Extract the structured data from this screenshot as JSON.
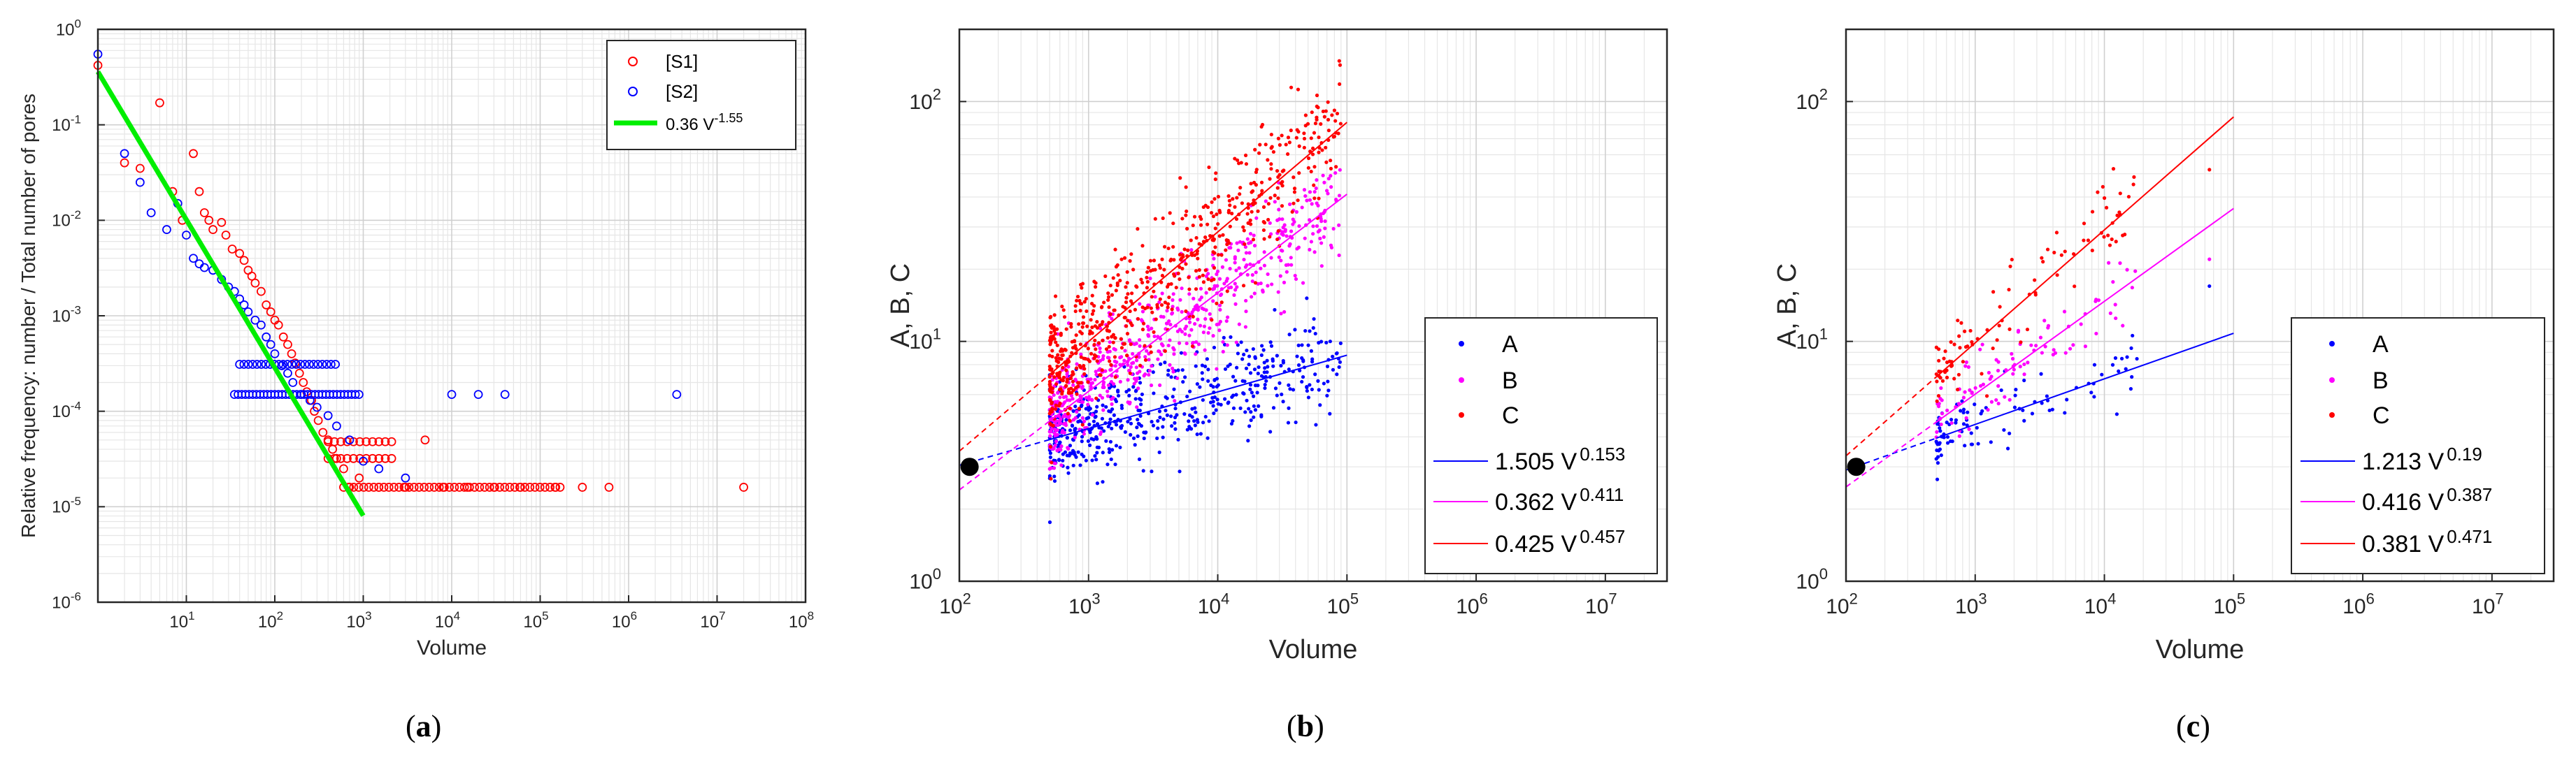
{
  "chart_data": [
    {
      "id": "a",
      "type": "scatter",
      "xscale": "log",
      "yscale": "log",
      "xlim": [
        1,
        100000000
      ],
      "ylim": [
        1e-06,
        1
      ],
      "xlabel": "Volume",
      "ylabel": "Relative frequency: number / Total number of pores",
      "xticks": [
        {
          "v": 10,
          "b": "10",
          "e": "1"
        },
        {
          "v": 100,
          "b": "10",
          "e": "2"
        },
        {
          "v": 1000,
          "b": "10",
          "e": "3"
        },
        {
          "v": 10000,
          "b": "10",
          "e": "4"
        },
        {
          "v": 100000,
          "b": "10",
          "e": "5"
        },
        {
          "v": 1000000,
          "b": "10",
          "e": "6"
        },
        {
          "v": 10000000,
          "b": "10",
          "e": "7"
        },
        {
          "v": 100000000,
          "b": "10",
          "e": "8"
        }
      ],
      "yticks": [
        {
          "v": 1e-06,
          "b": "10",
          "e": "-6"
        },
        {
          "v": 1e-05,
          "b": "10",
          "e": "-5"
        },
        {
          "v": 0.0001,
          "b": "10",
          "e": "-4"
        },
        {
          "v": 0.001,
          "b": "10",
          "e": "-3"
        },
        {
          "v": 0.01,
          "b": "10",
          "e": "-2"
        },
        {
          "v": 0.1,
          "b": "10",
          "e": "-1"
        },
        {
          "v": 1,
          "b": "10",
          "e": "0"
        }
      ],
      "series": [
        {
          "name": "[S1]",
          "color": "#ff0000",
          "marker": "circle-open",
          "points": [
            [
              1,
              0.42
            ],
            [
              2,
              0.04
            ],
            [
              3,
              0.035
            ],
            [
              5,
              0.17
            ],
            [
              7,
              0.02
            ],
            [
              9,
              0.01
            ],
            [
              12,
              0.05
            ],
            [
              14,
              0.02
            ],
            [
              16,
              0.012
            ],
            [
              18,
              0.01
            ],
            [
              20,
              0.008
            ],
            [
              25,
              0.0095
            ],
            [
              28,
              0.007
            ],
            [
              33,
              0.005
            ],
            [
              40,
              0.0045
            ],
            [
              45,
              0.0038
            ],
            [
              50,
              0.003
            ],
            [
              55,
              0.0026
            ],
            [
              60,
              0.0022
            ],
            [
              70,
              0.0018
            ],
            [
              80,
              0.0013
            ],
            [
              90,
              0.0011
            ],
            [
              100,
              0.0009
            ],
            [
              110,
              0.0008
            ],
            [
              125,
              0.0006
            ],
            [
              140,
              0.0005
            ],
            [
              155,
              0.0004
            ],
            [
              170,
              0.00032
            ],
            [
              190,
              0.00025
            ],
            [
              210,
              0.0002
            ],
            [
              230,
              0.00016
            ],
            [
              260,
              0.00013
            ],
            [
              280,
              0.0001
            ],
            [
              310,
              8e-05
            ],
            [
              350,
              6e-05
            ],
            [
              400,
              5e-05
            ],
            [
              450,
              4e-05
            ],
            [
              500,
              3.2e-05
            ],
            [
              600,
              2.5e-05
            ],
            [
              700,
              1.6e-05
            ],
            [
              900,
              2e-05
            ],
            [
              1500,
              1.6e-05
            ],
            [
              3000,
              1.6e-05
            ],
            [
              5000,
              5e-05
            ],
            [
              8000,
              1.6e-05
            ],
            [
              15000,
              1.6e-05
            ],
            [
              30000,
              1.6e-05
            ],
            [
              60000,
              1.6e-05
            ],
            [
              150000,
              1.6e-05
            ],
            [
              300000,
              1.6e-05
            ],
            [
              600000,
              1.6e-05
            ],
            [
              20000000,
              1.6e-05
            ]
          ]
        },
        {
          "name": "[S2]",
          "color": "#0000ff",
          "marker": "circle-open",
          "points": [
            [
              1,
              0.55
            ],
            [
              2,
              0.05
            ],
            [
              3,
              0.025
            ],
            [
              4,
              0.012
            ],
            [
              6,
              0.008
            ],
            [
              8,
              0.015
            ],
            [
              10,
              0.007
            ],
            [
              12,
              0.004
            ],
            [
              14,
              0.0035
            ],
            [
              16,
              0.0032
            ],
            [
              20,
              0.003
            ],
            [
              25,
              0.0024
            ],
            [
              30,
              0.002
            ],
            [
              35,
              0.0018
            ],
            [
              40,
              0.0015
            ],
            [
              45,
              0.0013
            ],
            [
              50,
              0.0011
            ],
            [
              60,
              0.0009
            ],
            [
              70,
              0.0008
            ],
            [
              80,
              0.0006
            ],
            [
              90,
              0.0005
            ],
            [
              100,
              0.0004
            ],
            [
              120,
              0.0003
            ],
            [
              140,
              0.00025
            ],
            [
              160,
              0.0002
            ],
            [
              200,
              0.00015
            ],
            [
              250,
              0.00013
            ],
            [
              300,
              0.00011
            ],
            [
              400,
              9e-05
            ],
            [
              500,
              7e-05
            ],
            [
              700,
              5e-05
            ],
            [
              1000,
              3e-05
            ],
            [
              1500,
              2.5e-05
            ],
            [
              3000,
              2e-05
            ],
            [
              10000,
              0.00015
            ],
            [
              20000,
              0.00015
            ],
            [
              40000,
              0.00015
            ],
            [
              3500000,
              0.00015
            ]
          ]
        }
      ],
      "fits": [
        {
          "label": "0.36 V",
          "exp": "-1.55",
          "color": "#00ee00",
          "a": 0.36,
          "b": -1.55,
          "x0": 1,
          "x1": 1000
        }
      ],
      "legend": {
        "position": "top-right",
        "entries": [
          {
            "label": "[S1]"
          },
          {
            "label": "[S2]"
          },
          {
            "label": "0.36 V",
            "exp": "-1.55"
          }
        ]
      }
    },
    {
      "id": "b",
      "type": "scatter",
      "xscale": "log",
      "yscale": "log",
      "xlim": [
        100,
        30000000
      ],
      "ylim": [
        1,
        200
      ],
      "xlabel": "Volume",
      "ylabel": "A, B, C",
      "xticks": [
        {
          "v": 100,
          "b": "10",
          "e": "2"
        },
        {
          "v": 1000,
          "b": "10",
          "e": "3"
        },
        {
          "v": 10000,
          "b": "10",
          "e": "4"
        },
        {
          "v": 100000,
          "b": "10",
          "e": "5"
        },
        {
          "v": 1000000,
          "b": "10",
          "e": "6"
        },
        {
          "v": 10000000,
          "b": "10",
          "e": "7"
        }
      ],
      "yticks": [
        {
          "v": 1,
          "b": "10",
          "e": "0"
        },
        {
          "v": 10,
          "b": "10",
          "e": "1"
        },
        {
          "v": 100,
          "b": "10",
          "e": "2"
        }
      ],
      "marker_point": {
        "x": 120,
        "y": 3
      },
      "series": [
        {
          "name": "A",
          "color": "#0000ff",
          "count": 520,
          "xmin": 500,
          "xmax": 90000,
          "a": 1.505,
          "b": 0.153,
          "spread": 0.18
        },
        {
          "name": "B",
          "color": "#ff00ff",
          "count": 620,
          "xmin": 500,
          "xmax": 90000,
          "a": 0.362,
          "b": 0.411,
          "spread": 0.2
        },
        {
          "name": "C",
          "color": "#ff0000",
          "count": 620,
          "xmin": 500,
          "xmax": 90000,
          "a": 0.425,
          "b": 0.457,
          "spread": 0.24
        }
      ],
      "fits": [
        {
          "label": "1.505 V",
          "exp": "0.153",
          "color": "#0000ff",
          "a": 1.505,
          "b": 0.153,
          "solid": [
            500,
            100000
          ],
          "dashed": [
            100,
            500
          ]
        },
        {
          "label": "0.362 V",
          "exp": "0.411",
          "color": "#ff00ff",
          "a": 0.362,
          "b": 0.411,
          "solid": [
            500,
            100000
          ],
          "dashed": [
            100,
            500
          ]
        },
        {
          "label": "0.425 V",
          "exp": "0.457",
          "color": "#ff0000",
          "a": 0.425,
          "b": 0.457,
          "solid": [
            500,
            100000
          ],
          "dashed": [
            100,
            500
          ]
        }
      ],
      "legend": {
        "position": "bottom-right",
        "entries": [
          {
            "label": "A"
          },
          {
            "label": "B"
          },
          {
            "label": "C"
          },
          {
            "label": "1.505 V",
            "exp": "0.153"
          },
          {
            "label": "0.362 V",
            "exp": "0.411"
          },
          {
            "label": "0.425 V",
            "exp": "0.457"
          }
        ]
      }
    },
    {
      "id": "c",
      "type": "scatter",
      "xscale": "log",
      "yscale": "log",
      "xlim": [
        100,
        30000000
      ],
      "ylim": [
        1,
        200
      ],
      "xlabel": "Volume",
      "ylabel": "A, B, C",
      "xticks": [
        {
          "v": 100,
          "b": "10",
          "e": "2"
        },
        {
          "v": 1000,
          "b": "10",
          "e": "3"
        },
        {
          "v": 10000,
          "b": "10",
          "e": "4"
        },
        {
          "v": 100000,
          "b": "10",
          "e": "5"
        },
        {
          "v": 1000000,
          "b": "10",
          "e": "6"
        },
        {
          "v": 10000000,
          "b": "10",
          "e": "7"
        }
      ],
      "yticks": [
        {
          "v": 1,
          "b": "10",
          "e": "0"
        },
        {
          "v": 10,
          "b": "10",
          "e": "1"
        },
        {
          "v": 100,
          "b": "10",
          "e": "2"
        }
      ],
      "marker_point": {
        "x": 120,
        "y": 3
      },
      "series": [
        {
          "name": "A",
          "color": "#0000ff",
          "count": 95,
          "xmin": 500,
          "xmax": 18000,
          "a": 1.213,
          "b": 0.19,
          "spread": 0.13,
          "extra": [
            [
              65000,
              17
            ]
          ]
        },
        {
          "name": "B",
          "color": "#ff00ff",
          "count": 95,
          "xmin": 500,
          "xmax": 18000,
          "a": 0.416,
          "b": 0.387,
          "spread": 0.16,
          "extra": [
            [
              65000,
              22
            ]
          ]
        },
        {
          "name": "C",
          "color": "#ff0000",
          "count": 95,
          "xmin": 500,
          "xmax": 18000,
          "a": 0.381,
          "b": 0.471,
          "spread": 0.16,
          "extra": [
            [
              65000,
              52
            ]
          ]
        }
      ],
      "fits": [
        {
          "label": "1.213 V",
          "exp": "0.19",
          "color": "#0000ff",
          "a": 1.213,
          "b": 0.19,
          "solid": [
            500,
            100000
          ],
          "dashed": [
            100,
            500
          ]
        },
        {
          "label": "0.416 V",
          "exp": "0.387",
          "color": "#ff00ff",
          "a": 0.416,
          "b": 0.387,
          "solid": [
            500,
            100000
          ],
          "dashed": [
            100,
            500
          ]
        },
        {
          "label": "0.381 V",
          "exp": "0.471",
          "color": "#ff0000",
          "a": 0.381,
          "b": 0.471,
          "solid": [
            500,
            100000
          ],
          "dashed": [
            100,
            500
          ]
        }
      ],
      "legend": {
        "position": "bottom-right",
        "entries": [
          {
            "label": "A"
          },
          {
            "label": "B"
          },
          {
            "label": "C"
          },
          {
            "label": "1.213 V",
            "exp": "0.19"
          },
          {
            "label": "0.416 V",
            "exp": "0.387"
          },
          {
            "label": "0.381 V",
            "exp": "0.471"
          }
        ]
      }
    }
  ],
  "captions": [
    {
      "open": "(",
      "letter": "a",
      "close": ")"
    },
    {
      "open": "(",
      "letter": "b",
      "close": ")"
    },
    {
      "open": "(",
      "letter": "c",
      "close": ")"
    }
  ]
}
